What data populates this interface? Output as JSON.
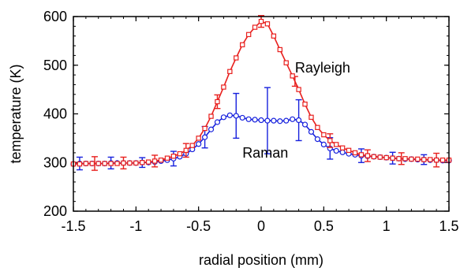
{
  "chart_data": {
    "type": "line",
    "xlabel": "radial position (mm)",
    "ylabel": "temperature (K)",
    "xlim": [
      -1.5,
      1.5
    ],
    "ylim": [
      200,
      600
    ],
    "x_ticks": [
      -1.5,
      -1,
      -0.5,
      0,
      0.5,
      1,
      1.5
    ],
    "x_tick_labels": [
      "-1.5",
      "-1",
      "-0.5",
      "0",
      "0.5",
      "1",
      "1.5"
    ],
    "y_ticks": [
      200,
      300,
      400,
      500,
      600
    ],
    "y_tick_labels": [
      "200",
      "300",
      "400",
      "500",
      "600"
    ],
    "grid": false,
    "legend": "none",
    "annotations": [
      {
        "text": "Rayleigh",
        "x": 0.27,
        "y": 495
      },
      {
        "text": "Raman",
        "x": -0.15,
        "y": 320
      }
    ],
    "series": [
      {
        "name": "Rayleigh",
        "color": "#e8201e",
        "marker": "square",
        "x": [
          -1.5,
          -1.45,
          -1.4,
          -1.35,
          -1.3,
          -1.25,
          -1.2,
          -1.15,
          -1.1,
          -1.05,
          -1.0,
          -0.95,
          -0.9,
          -0.85,
          -0.8,
          -0.75,
          -0.7,
          -0.65,
          -0.6,
          -0.55,
          -0.5,
          -0.45,
          -0.4,
          -0.35,
          -0.3,
          -0.25,
          -0.2,
          -0.15,
          -0.1,
          -0.05,
          0.0,
          0.05,
          0.1,
          0.15,
          0.2,
          0.25,
          0.3,
          0.35,
          0.4,
          0.45,
          0.5,
          0.55,
          0.6,
          0.65,
          0.7,
          0.75,
          0.8,
          0.85,
          0.9,
          0.95,
          1.0,
          1.05,
          1.1,
          1.15,
          1.2,
          1.25,
          1.3,
          1.35,
          1.4,
          1.45,
          1.5
        ],
        "y": [
          297,
          297,
          298,
          298,
          298,
          298,
          298,
          298,
          299,
          299,
          299,
          300,
          301,
          303,
          305,
          309,
          313,
          318,
          325,
          335,
          350,
          370,
          395,
          425,
          455,
          487,
          515,
          542,
          563,
          578,
          590,
          585,
          560,
          532,
          505,
          478,
          450,
          420,
          393,
          372,
          357,
          345,
          337,
          330,
          325,
          320,
          316,
          314,
          312,
          311,
          310,
          309,
          308,
          308,
          307,
          307,
          306,
          306,
          305,
          305,
          305
        ],
        "error_bars": [
          {
            "x": -1.33,
            "err": 14
          },
          {
            "x": -1.1,
            "err": 12
          },
          {
            "x": -0.85,
            "err": 12
          },
          {
            "x": -0.6,
            "err": 14
          },
          {
            "x": -0.35,
            "err": 14
          },
          {
            "x": 0.0,
            "err": 12
          },
          {
            "x": 0.27,
            "err": 10
          },
          {
            "x": 0.55,
            "err": 14
          },
          {
            "x": 0.85,
            "err": 12
          },
          {
            "x": 1.12,
            "err": 12
          },
          {
            "x": 1.4,
            "err": 14
          }
        ]
      },
      {
        "name": "Raman",
        "color": "#1620dd",
        "marker": "circle",
        "x": [
          -1.5,
          -1.45,
          -1.4,
          -1.35,
          -1.3,
          -1.25,
          -1.2,
          -1.15,
          -1.1,
          -1.05,
          -1.0,
          -0.95,
          -0.9,
          -0.85,
          -0.8,
          -0.75,
          -0.7,
          -0.65,
          -0.6,
          -0.55,
          -0.5,
          -0.45,
          -0.4,
          -0.35,
          -0.3,
          -0.25,
          -0.2,
          -0.15,
          -0.1,
          -0.05,
          0.0,
          0.05,
          0.1,
          0.15,
          0.2,
          0.25,
          0.3,
          0.35,
          0.4,
          0.45,
          0.5,
          0.55,
          0.6,
          0.65,
          0.7,
          0.75,
          0.8,
          0.85,
          0.9,
          0.95,
          1.0,
          1.05,
          1.1,
          1.15,
          1.2,
          1.25,
          1.3,
          1.35,
          1.4,
          1.45,
          1.5
        ],
        "y": [
          297,
          298,
          298,
          298,
          298,
          298,
          299,
          299,
          299,
          299,
          299,
          300,
          300,
          301,
          303,
          305,
          308,
          312,
          318,
          327,
          338,
          352,
          368,
          383,
          393,
          397,
          396,
          392,
          389,
          388,
          387,
          386,
          386,
          385,
          386,
          389,
          387,
          378,
          363,
          348,
          337,
          329,
          324,
          321,
          318,
          316,
          314,
          313,
          312,
          311,
          310,
          309,
          308,
          307,
          307,
          306,
          306,
          305,
          305,
          304,
          304
        ],
        "error_bars": [
          {
            "x": -1.45,
            "err": 13
          },
          {
            "x": -1.2,
            "err": 12
          },
          {
            "x": -0.95,
            "err": 10
          },
          {
            "x": -0.7,
            "err": 15
          },
          {
            "x": -0.45,
            "err": 22
          },
          {
            "x": -0.2,
            "err": 46
          },
          {
            "x": 0.05,
            "err": 68
          },
          {
            "x": 0.3,
            "err": 42
          },
          {
            "x": 0.55,
            "err": 22
          },
          {
            "x": 0.8,
            "err": 14
          },
          {
            "x": 1.05,
            "err": 12
          },
          {
            "x": 1.3,
            "err": 10
          }
        ]
      }
    ]
  }
}
